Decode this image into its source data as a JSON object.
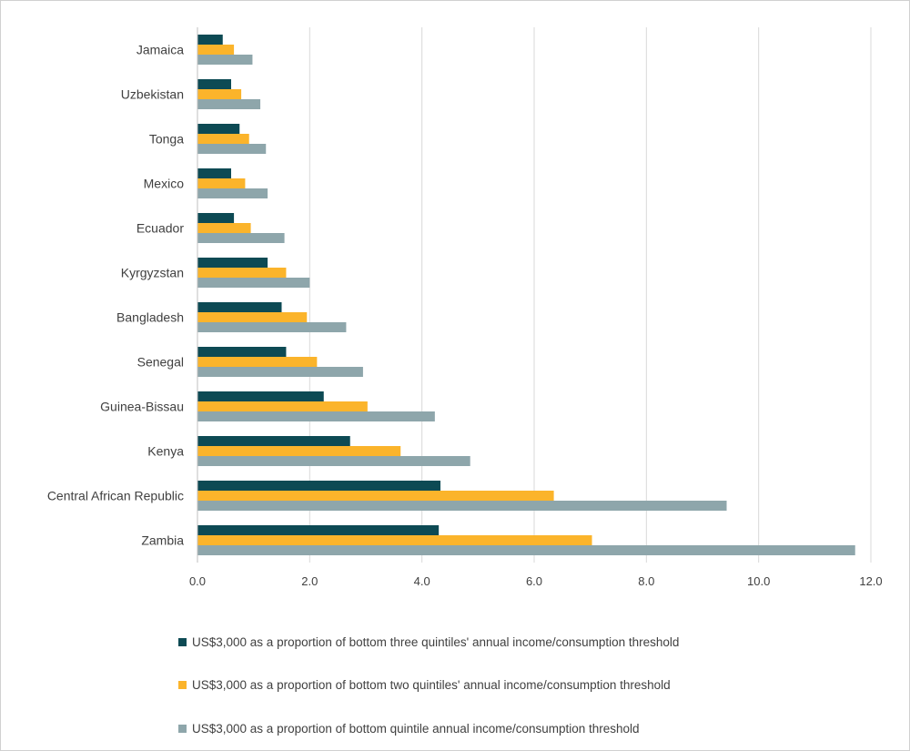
{
  "chart_data": {
    "type": "bar",
    "orientation": "horizontal",
    "categories": [
      "Jamaica",
      "Uzbekistan",
      "Tonga",
      "Mexico",
      "Ecuador",
      "Kyrgyzstan",
      "Bangladesh",
      "Senegal",
      "Guinea-Bissau",
      "Kenya",
      "Central African Republic",
      "Zambia"
    ],
    "series": [
      {
        "name": "US$3,000 as a proportion of bottom three quintiles' annual income/consumption threshold",
        "color": "#0d4a54",
        "values": [
          0.45,
          0.6,
          0.75,
          0.6,
          0.65,
          1.25,
          1.5,
          1.58,
          2.25,
          2.72,
          4.33,
          4.3
        ]
      },
      {
        "name": "US$3,000 as a proportion of bottom two quintiles' annual income/consumption threshold",
        "color": "#fbb42b",
        "values": [
          0.65,
          0.78,
          0.92,
          0.85,
          0.95,
          1.58,
          1.95,
          2.13,
          3.03,
          3.62,
          6.35,
          7.03
        ]
      },
      {
        "name": "US$3,000 as a proportion of bottom quintile annual income/consumption threshold",
        "color": "#8ea6ab",
        "values": [
          0.98,
          1.12,
          1.22,
          1.25,
          1.55,
          2.0,
          2.65,
          2.95,
          4.23,
          4.86,
          9.43,
          11.72
        ]
      }
    ],
    "xlim": [
      0,
      12
    ],
    "xticks": [
      "0.0",
      "2.0",
      "4.0",
      "6.0",
      "8.0",
      "10.0",
      "12.0"
    ],
    "grid": true,
    "legend_position": "bottom",
    "title": "",
    "xlabel": "",
    "ylabel": ""
  },
  "colors": {
    "gridline": "#d9d9d9",
    "axis": "#bfbfbf"
  }
}
